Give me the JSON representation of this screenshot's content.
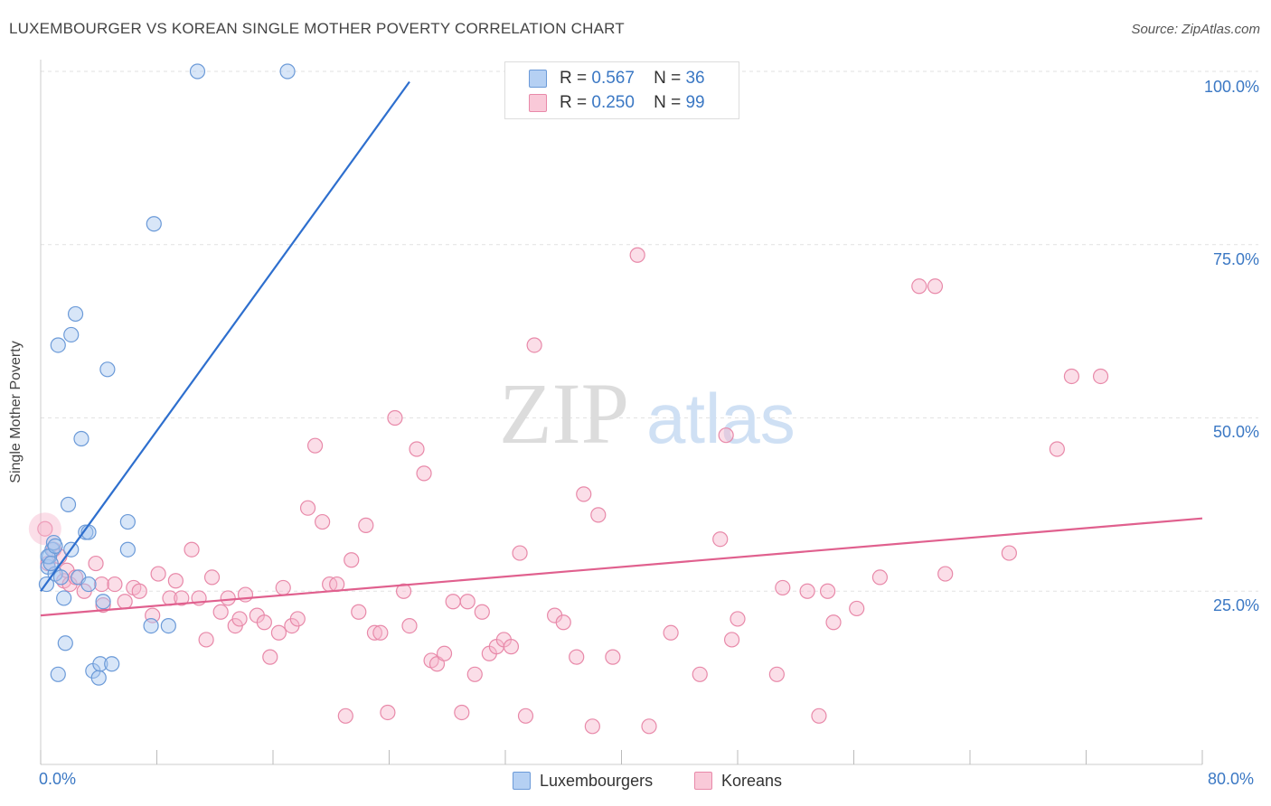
{
  "title": "LUXEMBOURGER VS KOREAN SINGLE MOTHER POVERTY CORRELATION CHART",
  "source": "Source: ZipAtlas.com",
  "watermark": {
    "zip": "ZIP",
    "atlas": "atlas"
  },
  "legend_top": [
    {
      "r_label": "R =",
      "r_value": "0.567",
      "n_label": "N =",
      "n_value": "36"
    },
    {
      "r_label": "R =",
      "r_value": "0.250",
      "n_label": "N =",
      "n_value": "99"
    }
  ],
  "legend_bottom": [
    "Luxembourgers",
    "Koreans"
  ],
  "colors": {
    "blue_fill": "#a9c8f0",
    "blue_stroke": "#6b9ad8",
    "blue_line": "#2e6fce",
    "pink_fill": "#f6b6cb",
    "pink_stroke": "#e889a9",
    "pink_line": "#e0608e",
    "axis_text": "#3b78c4"
  },
  "chart_data": {
    "type": "scatter",
    "title": "LUXEMBOURGER VS KOREAN SINGLE MOTHER POVERTY CORRELATION CHART",
    "xlabel": "",
    "ylabel": "Single Mother Poverty",
    "xlim": [
      0,
      80
    ],
    "ylim": [
      0,
      100
    ],
    "x_tick_labels": [
      "0.0%",
      "80.0%"
    ],
    "y_tick_labels": [
      "25.0%",
      "50.0%",
      "75.0%",
      "100.0%"
    ],
    "y_ticks": [
      25,
      50,
      75,
      100
    ],
    "grid": true,
    "series": [
      {
        "name": "Luxembourgers",
        "color": "#6b9ad8",
        "points": [
          [
            0.4,
            26.0
          ],
          [
            0.5,
            28.5
          ],
          [
            0.6,
            30.0
          ],
          [
            0.8,
            31.0
          ],
          [
            0.9,
            32.0
          ],
          [
            1.0,
            27.5
          ],
          [
            1.2,
            60.5
          ],
          [
            1.2,
            13.0
          ],
          [
            1.4,
            27.0
          ],
          [
            1.6,
            24.0
          ],
          [
            1.7,
            17.5
          ],
          [
            1.9,
            37.5
          ],
          [
            2.1,
            31.0
          ],
          [
            2.1,
            62.0
          ],
          [
            2.4,
            65.0
          ],
          [
            2.6,
            27.0
          ],
          [
            2.8,
            47.0
          ],
          [
            3.1,
            33.5
          ],
          [
            3.3,
            33.5
          ],
          [
            3.3,
            26.0
          ],
          [
            3.6,
            13.5
          ],
          [
            4.0,
            12.5
          ],
          [
            4.1,
            14.5
          ],
          [
            4.3,
            23.5
          ],
          [
            4.6,
            57.0
          ],
          [
            4.9,
            14.5
          ],
          [
            6.0,
            35.0
          ],
          [
            6.0,
            31.0
          ],
          [
            7.6,
            20.0
          ],
          [
            7.8,
            78.0
          ],
          [
            8.8,
            20.0
          ],
          [
            10.8,
            100.0
          ],
          [
            17.0,
            100.0
          ],
          [
            0.5,
            30.0
          ],
          [
            0.7,
            29.0
          ],
          [
            1.0,
            31.5
          ]
        ],
        "trend": {
          "x": [
            0,
            25.4
          ],
          "y": [
            25.0,
            98.5
          ]
        }
      },
      {
        "name": "Koreans",
        "color": "#e889a9",
        "points": [
          [
            0.3,
            34.0
          ],
          [
            0.5,
            29.0
          ],
          [
            0.9,
            31.0
          ],
          [
            1.3,
            30.0
          ],
          [
            1.6,
            26.5
          ],
          [
            1.8,
            28.0
          ],
          [
            2.0,
            26.0
          ],
          [
            2.4,
            27.0
          ],
          [
            3.0,
            25.0
          ],
          [
            3.8,
            29.0
          ],
          [
            4.2,
            26.0
          ],
          [
            4.3,
            23.0
          ],
          [
            5.1,
            26.0
          ],
          [
            5.8,
            23.5
          ],
          [
            6.4,
            25.5
          ],
          [
            6.8,
            25.0
          ],
          [
            7.7,
            21.5
          ],
          [
            8.1,
            27.5
          ],
          [
            8.9,
            24.0
          ],
          [
            9.3,
            26.5
          ],
          [
            9.7,
            24.0
          ],
          [
            10.4,
            31.0
          ],
          [
            10.9,
            24.0
          ],
          [
            11.4,
            18.0
          ],
          [
            11.8,
            27.0
          ],
          [
            12.4,
            22.0
          ],
          [
            12.9,
            24.0
          ],
          [
            13.4,
            20.0
          ],
          [
            13.7,
            21.0
          ],
          [
            14.1,
            24.5
          ],
          [
            14.9,
            21.5
          ],
          [
            15.4,
            20.5
          ],
          [
            15.8,
            15.5
          ],
          [
            16.4,
            19.0
          ],
          [
            16.7,
            25.5
          ],
          [
            17.3,
            20.0
          ],
          [
            17.7,
            21.0
          ],
          [
            18.4,
            37.0
          ],
          [
            18.9,
            46.0
          ],
          [
            19.4,
            35.0
          ],
          [
            19.9,
            26.0
          ],
          [
            20.4,
            26.0
          ],
          [
            21.0,
            7.0
          ],
          [
            21.4,
            29.5
          ],
          [
            21.9,
            22.0
          ],
          [
            22.4,
            34.5
          ],
          [
            23.0,
            19.0
          ],
          [
            23.4,
            19.0
          ],
          [
            23.9,
            7.5
          ],
          [
            24.4,
            50.0
          ],
          [
            25.0,
            25.0
          ],
          [
            25.4,
            20.0
          ],
          [
            25.9,
            45.5
          ],
          [
            26.4,
            42.0
          ],
          [
            26.9,
            15.0
          ],
          [
            27.3,
            14.5
          ],
          [
            27.8,
            16.0
          ],
          [
            28.4,
            23.5
          ],
          [
            29.0,
            7.5
          ],
          [
            29.4,
            23.5
          ],
          [
            29.9,
            13.0
          ],
          [
            30.4,
            22.0
          ],
          [
            30.9,
            16.0
          ],
          [
            31.4,
            17.0
          ],
          [
            31.9,
            18.0
          ],
          [
            32.4,
            17.0
          ],
          [
            33.0,
            30.5
          ],
          [
            33.4,
            7.0
          ],
          [
            34.0,
            60.5
          ],
          [
            35.4,
            21.5
          ],
          [
            36.0,
            20.5
          ],
          [
            36.9,
            15.5
          ],
          [
            37.4,
            39.0
          ],
          [
            38.0,
            5.5
          ],
          [
            38.4,
            36.0
          ],
          [
            39.4,
            15.5
          ],
          [
            41.1,
            73.5
          ],
          [
            41.9,
            5.5
          ],
          [
            43.4,
            19.0
          ],
          [
            45.4,
            13.0
          ],
          [
            46.8,
            32.5
          ],
          [
            47.2,
            47.5
          ],
          [
            47.6,
            18.0
          ],
          [
            48.0,
            21.0
          ],
          [
            50.7,
            13.0
          ],
          [
            51.1,
            25.5
          ],
          [
            52.8,
            25.0
          ],
          [
            53.6,
            7.0
          ],
          [
            54.2,
            25.0
          ],
          [
            54.6,
            20.5
          ],
          [
            56.2,
            22.5
          ],
          [
            57.8,
            27.0
          ],
          [
            60.5,
            69.0
          ],
          [
            61.6,
            69.0
          ],
          [
            62.3,
            27.5
          ],
          [
            66.7,
            30.5
          ],
          [
            70.0,
            45.5
          ],
          [
            71.0,
            56.0
          ],
          [
            73.0,
            56.0
          ]
        ],
        "trend": {
          "x": [
            0,
            80
          ],
          "y": [
            21.5,
            35.5
          ]
        }
      }
    ]
  }
}
